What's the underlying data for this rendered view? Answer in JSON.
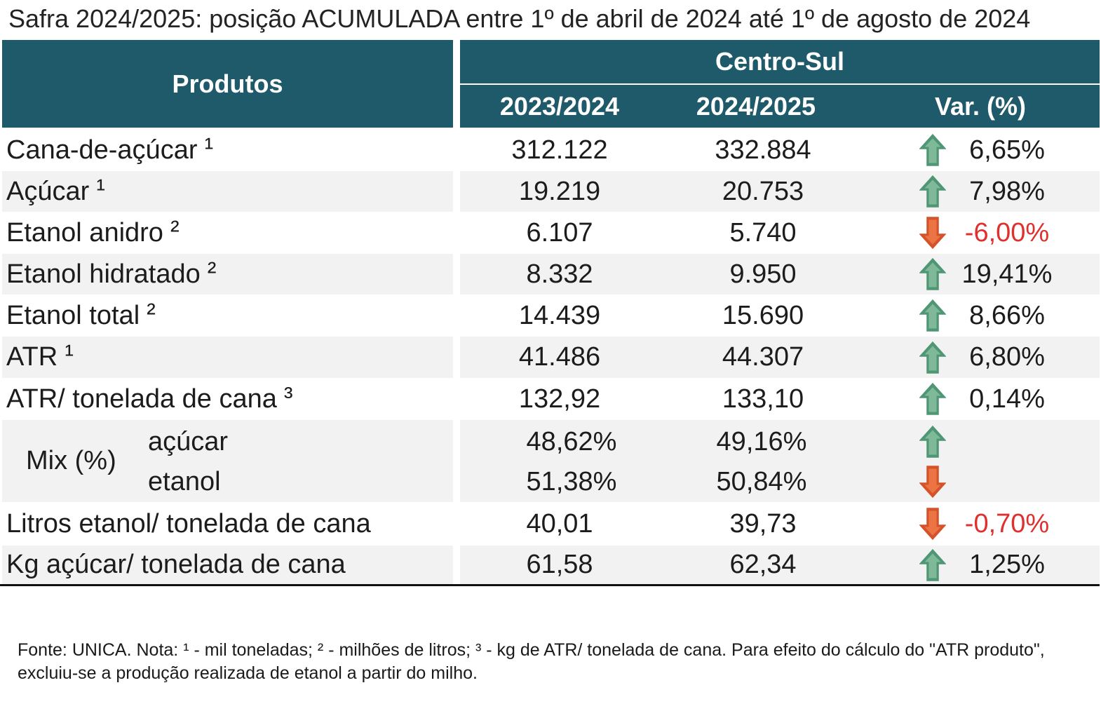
{
  "title": "Safra 2024/2025: posição ACUMULADA entre 1º de abril de 2024 até 1º de agosto de 2024",
  "colors": {
    "header_bg": "#1f5a6a",
    "header_text": "#ffffff",
    "stripe_bg": "#f2f2f2",
    "up_arrow": "#4f9675",
    "up_arrow_light": "#80b999",
    "down_arrow": "#d4532b",
    "down_arrow_light": "#ec7443",
    "negative_text": "#e0302e"
  },
  "header": {
    "products": "Produtos",
    "region": "Centro-Sul",
    "columns": [
      "2023/2024",
      "2024/2025",
      "Var. (%)"
    ]
  },
  "table": {
    "rows": [
      {
        "label": "Cana-de-açúcar",
        "note": "¹",
        "v2023": "312.122",
        "v2024": "332.884",
        "var": "6,65%",
        "icon": "arrow-up-icon"
      },
      {
        "label": "Açúcar",
        "note": "¹",
        "v2023": "19.219",
        "v2024": "20.753",
        "var": "7,98%",
        "icon": "arrow-up-icon"
      },
      {
        "label": "Etanol anidro",
        "note": "²",
        "v2023": "6.107",
        "v2024": "5.740",
        "var": "-6,00%",
        "icon": "arrow-down-icon"
      },
      {
        "label": "Etanol hidratado",
        "note": "²",
        "v2023": "8.332",
        "v2024": "9.950",
        "var": "19,41%",
        "icon": "arrow-up-icon"
      },
      {
        "label": "Etanol total",
        "note": "²",
        "v2023": "14.439",
        "v2024": "15.690",
        "var": "8,66%",
        "icon": "arrow-up-icon"
      },
      {
        "label": "ATR",
        "note": "¹",
        "v2023": "41.486",
        "v2024": "44.307",
        "var": "6,80%",
        "icon": "arrow-up-icon"
      },
      {
        "label": "ATR/ tonelada de cana",
        "note": "³",
        "v2023": "132,92",
        "v2024": "133,10",
        "var": "0,14%",
        "icon": "arrow-up-icon"
      },
      {
        "label": "Mix (%)",
        "items": [
          {
            "label": "açúcar",
            "v2023": "48,62%",
            "v2024": "49,16%",
            "icon": "arrow-up-icon"
          },
          {
            "label": "etanol",
            "v2023": "51,38%",
            "v2024": "50,84%",
            "icon": "arrow-down-icon"
          }
        ]
      },
      {
        "label": "Litros etanol/ tonelada de cana",
        "v2023": "40,01",
        "v2024": "39,73",
        "var": "-0,70%",
        "icon": "arrow-down-icon"
      },
      {
        "label": "Kg açúcar/ tonelada de cana",
        "v2023": "61,58",
        "v2024": "62,34",
        "var": "1,25%",
        "icon": "arrow-up-icon"
      }
    ]
  },
  "footer": {
    "line1": "Fonte: UNICA. Nota: ¹ - mil toneladas; ² - milhões de litros; ³ - kg de ATR/ tonelada de cana. Para efeito do cálculo do \"ATR produto\",",
    "line2": "excluiu-se a produção realizada de etanol a partir do milho."
  }
}
